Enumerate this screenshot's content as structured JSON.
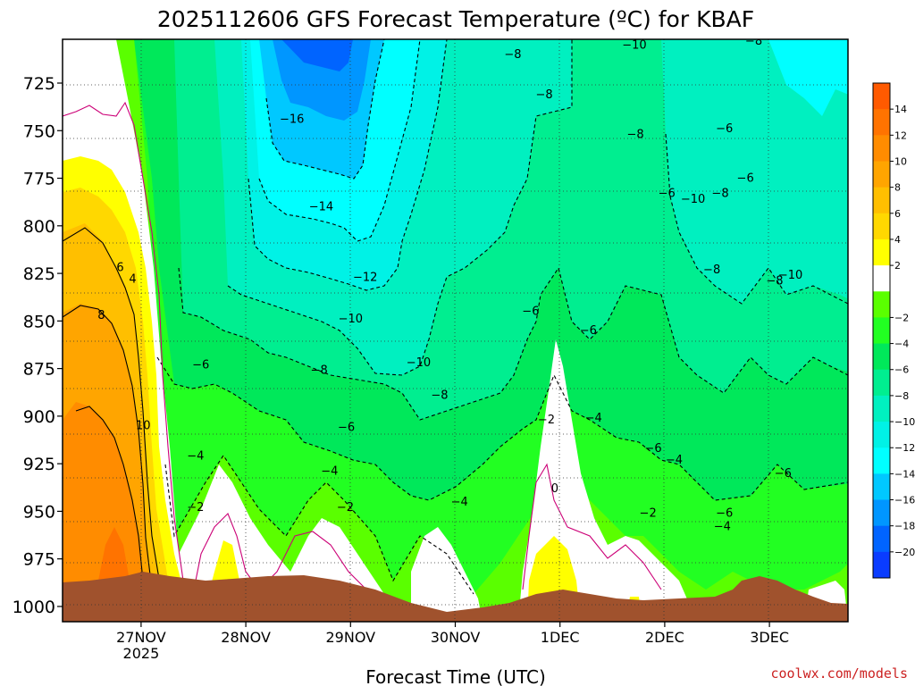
{
  "chart_data": {
    "type": "heatmap",
    "title": "2025112606 GFS Forecast Temperature (ºC) for KBAF",
    "xlabel": "Forecast Time (UTC)",
    "ylabel": "",
    "credit": "coolwx.com/models",
    "y_axis": {
      "unit": "hPa",
      "inverted": true,
      "range": [
        1008,
        702
      ],
      "ticks": [
        725,
        750,
        775,
        800,
        825,
        850,
        875,
        900,
        925,
        950,
        975,
        1000
      ]
    },
    "x_axis": {
      "range_days": [
        -0.75,
        6.75
      ],
      "ticks": [
        {
          "day": 0,
          "label": "27NOV",
          "sublabel": "2025"
        },
        {
          "day": 1,
          "label": "28NOV",
          "sublabel": ""
        },
        {
          "day": 2,
          "label": "29NOV",
          "sublabel": ""
        },
        {
          "day": 3,
          "label": "30NOV",
          "sublabel": ""
        },
        {
          "day": 4,
          "label": "1DEC",
          "sublabel": ""
        },
        {
          "day": 5,
          "label": "2DEC",
          "sublabel": ""
        },
        {
          "day": 6,
          "label": "3DEC",
          "sublabel": ""
        }
      ]
    },
    "grid": true,
    "colorbar": {
      "placement": "right",
      "ticks": [
        "14",
        "12",
        "10",
        "8",
        "6",
        "4",
        "2",
        "−2",
        "−4",
        "−6",
        "−8",
        "−10",
        "−12",
        "−14",
        "−16",
        "−18",
        "−20"
      ],
      "colors": [
        "#ff5a00",
        "#ff7300",
        "#ff8c00",
        "#ffa500",
        "#ffbf00",
        "#ffd800",
        "#ffff00",
        "#ffffff",
        "#5aff00",
        "#22ff22",
        "#00e85a",
        "#00ee90",
        "#00f0c0",
        "#00f2e6",
        "#00ffff",
        "#00c8ff",
        "#0096ff",
        "#0064ff",
        "#0a3cff"
      ]
    },
    "surface_color": "#a0522d",
    "temperature_contour_labels": [
      {
        "day": -0.2,
        "p": 822,
        "text": "6"
      },
      {
        "day": -0.08,
        "p": 828,
        "text": "4"
      },
      {
        "day": -0.38,
        "p": 847,
        "text": "8"
      },
      {
        "day": 0.02,
        "p": 905,
        "text": "10"
      },
      {
        "day": 0.57,
        "p": 873,
        "text": "−6"
      },
      {
        "day": 0.52,
        "p": 921,
        "text": "−4"
      },
      {
        "day": 0.52,
        "p": 948,
        "text": "−2"
      },
      {
        "day": 1.44,
        "p": 744,
        "text": "−16"
      },
      {
        "day": 1.72,
        "p": 790,
        "text": "−14"
      },
      {
        "day": 2.14,
        "p": 827,
        "text": "−12"
      },
      {
        "day": 2.0,
        "p": 849,
        "text": "−10"
      },
      {
        "day": 1.7,
        "p": 876,
        "text": "−8"
      },
      {
        "day": 1.96,
        "p": 906,
        "text": "−6"
      },
      {
        "day": 1.8,
        "p": 929,
        "text": "−4"
      },
      {
        "day": 1.95,
        "p": 948,
        "text": "−2"
      },
      {
        "day": 2.65,
        "p": 872,
        "text": "−10"
      },
      {
        "day": 2.85,
        "p": 889,
        "text": "−8"
      },
      {
        "day": 3.04,
        "p": 945,
        "text": "−4"
      },
      {
        "day": 3.55,
        "p": 710,
        "text": "−8"
      },
      {
        "day": 3.85,
        "p": 731,
        "text": "−8"
      },
      {
        "day": 3.72,
        "p": 845,
        "text": "−6"
      },
      {
        "day": 3.87,
        "p": 902,
        "text": "−2"
      },
      {
        "day": 3.95,
        "p": 938,
        "text": "0"
      },
      {
        "day": 4.27,
        "p": 855,
        "text": "−6"
      },
      {
        "day": 4.32,
        "p": 901,
        "text": "−4"
      },
      {
        "day": 4.71,
        "p": 705,
        "text": "−10"
      },
      {
        "day": 4.72,
        "p": 752,
        "text": "−8"
      },
      {
        "day": 4.89,
        "p": 917,
        "text": "−6"
      },
      {
        "day": 5.09,
        "p": 923,
        "text": "−4"
      },
      {
        "day": 4.84,
        "p": 951,
        "text": "−2"
      },
      {
        "day": 5.02,
        "p": 783,
        "text": "−6"
      },
      {
        "day": 5.27,
        "p": 786,
        "text": "−10"
      },
      {
        "day": 5.53,
        "p": 783,
        "text": "−8"
      },
      {
        "day": 5.45,
        "p": 823,
        "text": "−8"
      },
      {
        "day": 5.57,
        "p": 749,
        "text": "−6"
      },
      {
        "day": 5.77,
        "p": 775,
        "text": "−6"
      },
      {
        "day": 5.57,
        "p": 951,
        "text": "−6"
      },
      {
        "day": 5.55,
        "p": 958,
        "text": "−4"
      },
      {
        "day": 5.85,
        "p": 703,
        "text": "−8"
      },
      {
        "day": 6.05,
        "p": 829,
        "text": "−8"
      },
      {
        "day": 6.2,
        "p": 826,
        "text": "−10"
      },
      {
        "day": 6.13,
        "p": 930,
        "text": "−6"
      }
    ]
  }
}
